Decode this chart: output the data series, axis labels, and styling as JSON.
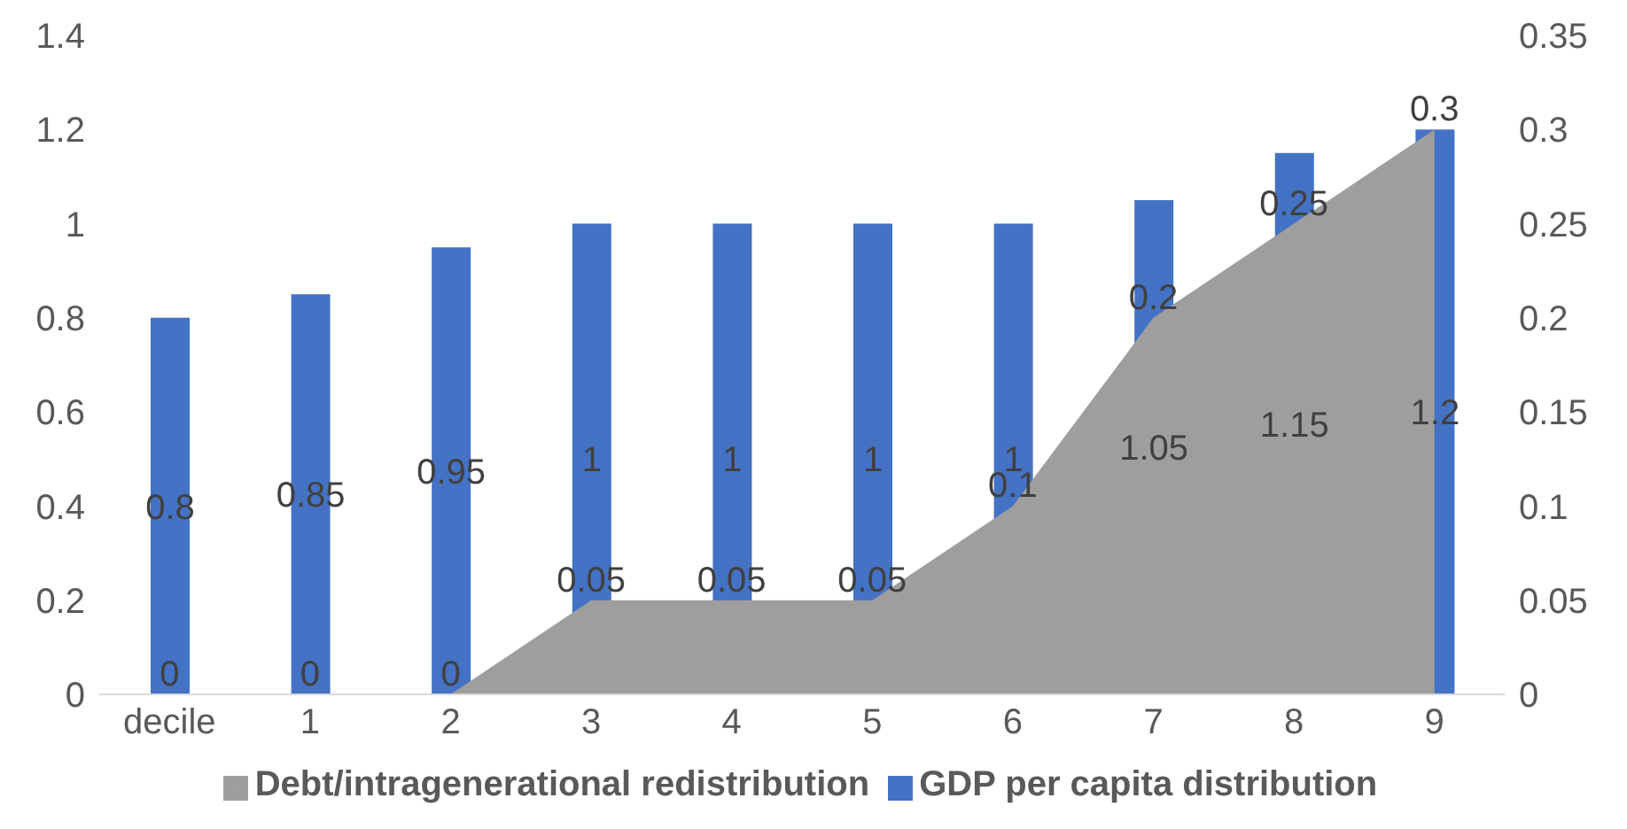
{
  "chart_data": {
    "type": "bar",
    "categories": [
      "decile",
      "1",
      "2",
      "3",
      "4",
      "5",
      "6",
      "7",
      "8",
      "9"
    ],
    "series": [
      {
        "name": "Debt/intragenerational redistribution",
        "type": "area",
        "axis": "y2",
        "color": "#9e9e9e",
        "values": [
          0,
          0,
          0,
          0.05,
          0.05,
          0.05,
          0.1,
          0.2,
          0.25,
          0.3
        ]
      },
      {
        "name": "GDP per capita distribution",
        "color": "#4472c4",
        "values": [
          0.8,
          0.85,
          0.95,
          1,
          1,
          1,
          1,
          1.05,
          1.15,
          1.2
        ]
      }
    ],
    "ylim": [
      0,
      1.4
    ],
    "yticks": [
      0,
      0.2,
      0.4,
      0.6,
      0.8,
      1,
      1.2,
      1.4
    ],
    "y2lim": [
      0,
      0.35
    ],
    "y2ticks": [
      0,
      0.05,
      0.1,
      0.15,
      0.2,
      0.25,
      0.3,
      0.35
    ],
    "data_labels": true,
    "legend": "bottom"
  }
}
